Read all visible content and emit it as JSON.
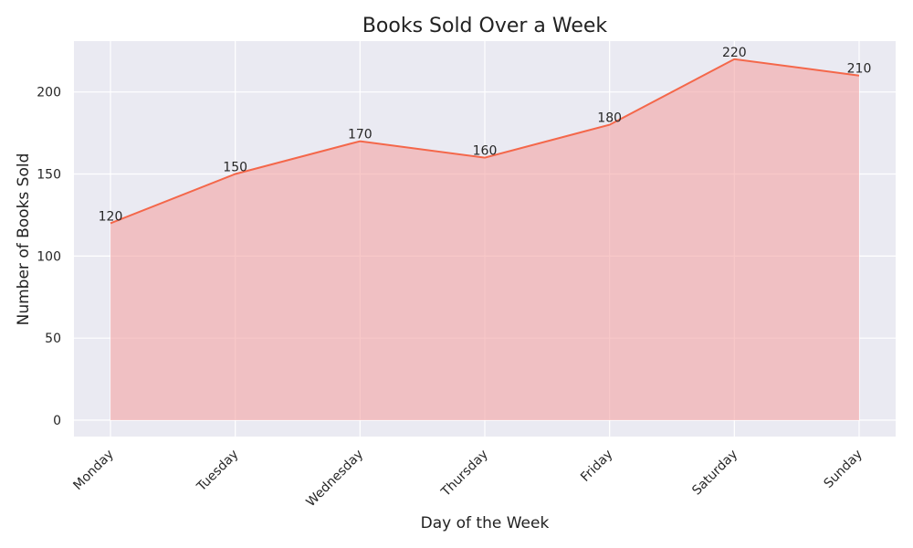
{
  "colors": {
    "plot_background": "#eaeaf2",
    "grid": "#ffffff",
    "line": "#f4674a",
    "fill": "#f4a3a3"
  },
  "chart_data": {
    "type": "area",
    "title": "Books Sold Over a Week",
    "xlabel": "Day of the Week",
    "ylabel": "Number of Books Sold",
    "categories": [
      "Monday",
      "Tuesday",
      "Wednesday",
      "Thursday",
      "Friday",
      "Saturday",
      "Sunday"
    ],
    "values": [
      120,
      150,
      170,
      160,
      180,
      220,
      210
    ],
    "data_labels": [
      "120",
      "150",
      "170",
      "160",
      "180",
      "220",
      "210"
    ],
    "y_ticks": [
      0,
      50,
      100,
      150,
      200
    ],
    "y_tick_labels": [
      "0",
      "50",
      "100",
      "150",
      "200"
    ],
    "ylim": [
      -10,
      231
    ],
    "grid": true,
    "legend": "none"
  }
}
